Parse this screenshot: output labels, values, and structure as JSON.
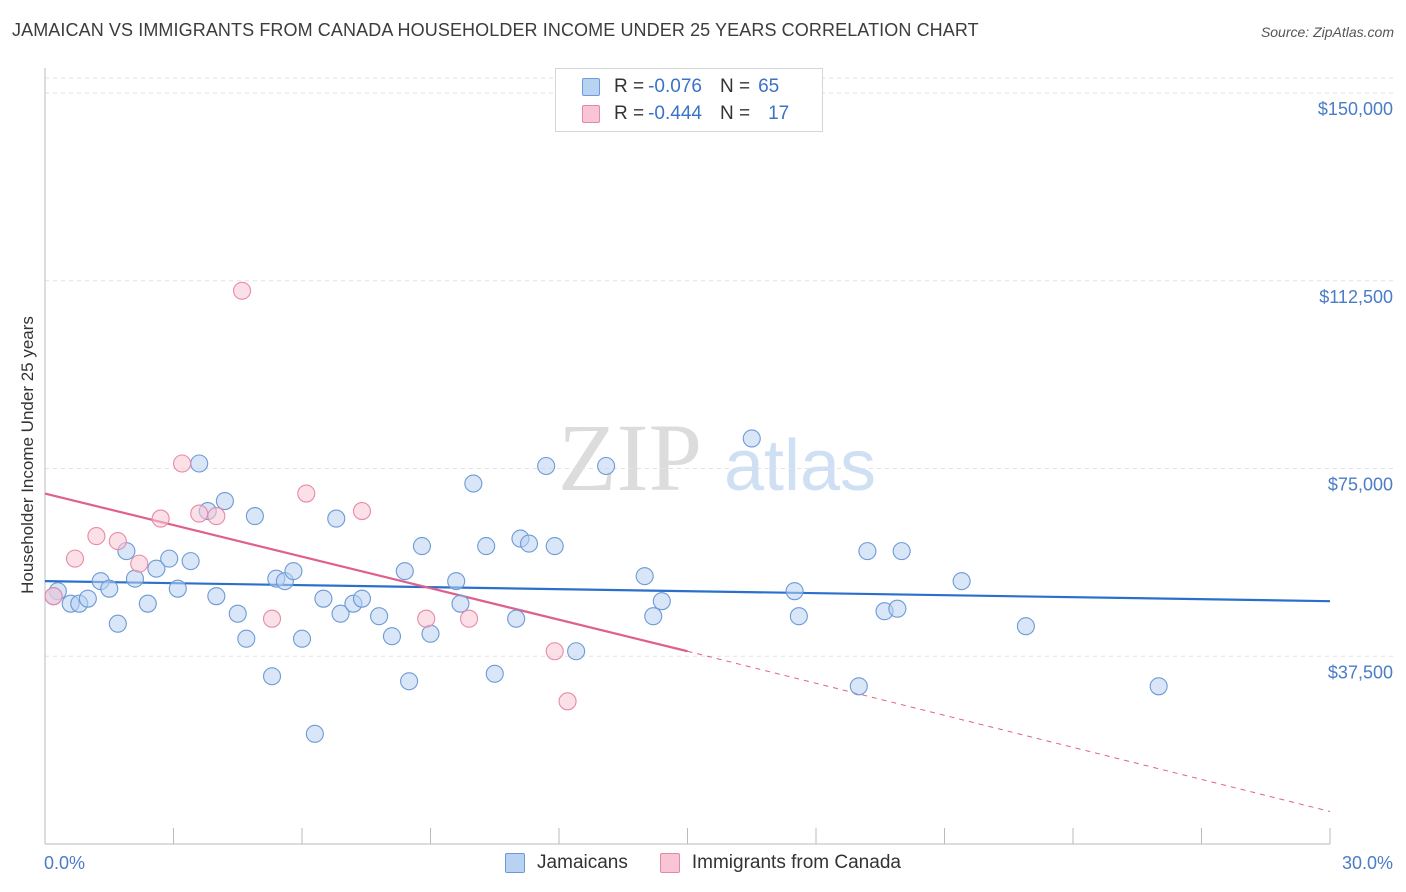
{
  "title": "JAMAICAN VS IMMIGRANTS FROM CANADA HOUSEHOLDER INCOME UNDER 25 YEARS CORRELATION CHART",
  "source": "Source: ZipAtlas.com",
  "watermark": {
    "zip": "ZIP",
    "atlas": "atlas"
  },
  "legend": {
    "rows": [
      {
        "r_label": "R =",
        "r_value": "-0.076",
        "n_label": "N =",
        "n_value": "65",
        "color": "#a9c8f0",
        "border": "#6d9ad6"
      },
      {
        "r_label": "R =",
        "r_value": "-0.444",
        "n_label": "N =",
        "n_value": "17",
        "color": "#f9c4d4",
        "border": "#e08aa6"
      }
    ]
  },
  "bottom_legend": [
    "Jamaicans",
    "Immigrants from Canada"
  ],
  "chart_data": {
    "type": "scatter",
    "ylabel": "Householder Income Under 25 years",
    "xlim": [
      0,
      30
    ],
    "ylim": [
      0,
      153000
    ],
    "x_tick_labels": [
      "0.0%",
      "30.0%"
    ],
    "y_ticks": [
      37500,
      75000,
      112500,
      150000
    ],
    "y_tick_labels": [
      "$37,500",
      "$75,000",
      "$112,500",
      "$150,000"
    ],
    "grid": true,
    "colors": {
      "jamaicans": "#6d9ad6",
      "jamaicans_fill": "#b8d2f2",
      "canada": "#e88aa8",
      "canada_fill": "#f7c7d6",
      "blue_line": "#2b6fcc",
      "pink_line": "#e0608c"
    },
    "series": [
      {
        "name": "Jamaicans",
        "points": [
          [
            0.3,
            50500
          ],
          [
            0.6,
            48000
          ],
          [
            0.8,
            48000
          ],
          [
            1.0,
            49000
          ],
          [
            1.3,
            52500
          ],
          [
            1.5,
            51000
          ],
          [
            1.7,
            44000
          ],
          [
            1.9,
            58500
          ],
          [
            2.1,
            53000
          ],
          [
            2.4,
            48000
          ],
          [
            2.6,
            55000
          ],
          [
            2.9,
            57000
          ],
          [
            3.1,
            51000
          ],
          [
            3.4,
            56500
          ],
          [
            3.6,
            76000
          ],
          [
            3.8,
            66500
          ],
          [
            4.0,
            49500
          ],
          [
            4.2,
            68500
          ],
          [
            4.5,
            46000
          ],
          [
            4.7,
            41000
          ],
          [
            4.9,
            65500
          ],
          [
            5.3,
            33500
          ],
          [
            5.4,
            53000
          ],
          [
            5.6,
            52500
          ],
          [
            5.8,
            54500
          ],
          [
            6.0,
            41000
          ],
          [
            6.3,
            22000
          ],
          [
            6.5,
            49000
          ],
          [
            6.8,
            65000
          ],
          [
            6.9,
            46000
          ],
          [
            7.2,
            48000
          ],
          [
            7.4,
            49000
          ],
          [
            7.8,
            45500
          ],
          [
            8.1,
            41500
          ],
          [
            8.4,
            54500
          ],
          [
            8.5,
            32500
          ],
          [
            8.8,
            59500
          ],
          [
            9.0,
            42000
          ],
          [
            9.6,
            52500
          ],
          [
            9.7,
            48000
          ],
          [
            10.0,
            72000
          ],
          [
            10.3,
            59500
          ],
          [
            10.5,
            34000
          ],
          [
            11.0,
            45000
          ],
          [
            11.1,
            61000
          ],
          [
            11.3,
            60000
          ],
          [
            11.7,
            75500
          ],
          [
            11.9,
            59500
          ],
          [
            12.4,
            38500
          ],
          [
            13.1,
            75500
          ],
          [
            14.0,
            53500
          ],
          [
            14.2,
            45500
          ],
          [
            14.4,
            48500
          ],
          [
            16.5,
            81000
          ],
          [
            17.5,
            50500
          ],
          [
            17.6,
            45500
          ],
          [
            19.0,
            31500
          ],
          [
            19.2,
            58500
          ],
          [
            19.6,
            46500
          ],
          [
            19.9,
            47000
          ],
          [
            20.0,
            58500
          ],
          [
            21.4,
            52500
          ],
          [
            22.9,
            43500
          ],
          [
            26.0,
            31500
          ],
          [
            0.2,
            49500
          ]
        ]
      },
      {
        "name": "Immigrants from Canada",
        "points": [
          [
            0.2,
            49500
          ],
          [
            0.7,
            57000
          ],
          [
            1.2,
            61500
          ],
          [
            1.7,
            60500
          ],
          [
            2.2,
            56000
          ],
          [
            2.7,
            65000
          ],
          [
            3.2,
            76000
          ],
          [
            3.6,
            66000
          ],
          [
            4.0,
            65500
          ],
          [
            4.6,
            110500
          ],
          [
            5.3,
            45000
          ],
          [
            6.1,
            70000
          ],
          [
            7.4,
            66500
          ],
          [
            8.9,
            45000
          ],
          [
            9.9,
            45000
          ],
          [
            11.9,
            38500
          ],
          [
            12.2,
            28500
          ]
        ]
      }
    ],
    "trend_lines": [
      {
        "name": "Jamaicans",
        "x": [
          0,
          30
        ],
        "y": [
          52500,
          48500
        ]
      },
      {
        "name": "Immigrants from Canada",
        "x": [
          0,
          15
        ],
        "y": [
          70000,
          38500
        ],
        "dashed_to": [
          30,
          6500
        ]
      }
    ]
  }
}
